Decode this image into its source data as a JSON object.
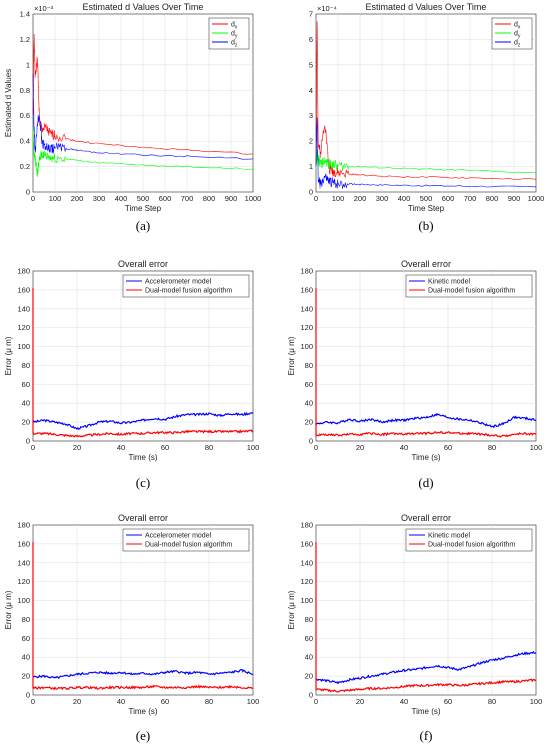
{
  "chart_data": [
    {
      "id": "a",
      "type": "line",
      "caption": "(a)",
      "title": "Estimated d Values Over Time",
      "xlabel": "Time Step",
      "ylabel": "Estimated d Values",
      "exponent_label": "×10⁻³",
      "xlim": [
        0,
        1000
      ],
      "ylim": [
        0,
        1.4
      ],
      "xticks": [
        "0",
        "100",
        "200",
        "300",
        "400",
        "500",
        "600",
        "700",
        "800",
        "900",
        "1000"
      ],
      "yticks": [
        "0",
        "0.2",
        "0.4",
        "0.6",
        "0.8",
        "1",
        "1.2",
        "1.4"
      ],
      "grid": true,
      "legend_position": "top-right",
      "series": [
        {
          "name": "d_x",
          "color": "#ff0000",
          "x": [
            0,
            5,
            10,
            20,
            30,
            40,
            60,
            80,
            100,
            150,
            200,
            300,
            500,
            700,
            1000
          ],
          "y": [
            0.6,
            1.25,
            0.9,
            1.05,
            0.55,
            0.5,
            0.5,
            0.45,
            0.45,
            0.42,
            0.4,
            0.38,
            0.35,
            0.33,
            0.3
          ]
        },
        {
          "name": "d_y",
          "color": "#00ff00",
          "x": [
            0,
            5,
            10,
            20,
            30,
            40,
            60,
            80,
            100,
            150,
            200,
            300,
            500,
            700,
            1000
          ],
          "y": [
            0.5,
            0.3,
            0.25,
            0.15,
            0.25,
            0.3,
            0.28,
            0.27,
            0.27,
            0.26,
            0.25,
            0.23,
            0.21,
            0.2,
            0.18
          ]
        },
        {
          "name": "d_z",
          "color": "#0000ff",
          "x": [
            0,
            5,
            10,
            20,
            30,
            40,
            60,
            80,
            100,
            150,
            200,
            300,
            500,
            700,
            1000
          ],
          "y": [
            0.9,
            0.5,
            0.3,
            0.55,
            0.6,
            0.4,
            0.35,
            0.33,
            0.35,
            0.34,
            0.33,
            0.31,
            0.29,
            0.28,
            0.26
          ]
        }
      ]
    },
    {
      "id": "b",
      "type": "line",
      "caption": "(b)",
      "title": "Estimated d Values Over Time",
      "xlabel": "Time Step",
      "ylabel": "",
      "exponent_label": "×10⁻⁴",
      "xlim": [
        0,
        1000
      ],
      "ylim": [
        0,
        7
      ],
      "xticks": [
        "0",
        "100",
        "200",
        "300",
        "400",
        "500",
        "600",
        "700",
        "800",
        "900",
        "1000"
      ],
      "yticks": [
        "0",
        "1",
        "2",
        "3",
        "4",
        "5",
        "6",
        "7"
      ],
      "grid": true,
      "legend_position": "top-right",
      "series": [
        {
          "name": "d_x",
          "color": "#ff0000",
          "x": [
            0,
            5,
            10,
            20,
            40,
            60,
            80,
            100,
            150,
            200,
            300,
            500,
            700,
            1000
          ],
          "y": [
            1,
            6.7,
            2,
            1.5,
            2.8,
            0.9,
            0.8,
            0.75,
            0.7,
            0.68,
            0.62,
            0.58,
            0.55,
            0.5
          ]
        },
        {
          "name": "d_y",
          "color": "#00ff00",
          "x": [
            0,
            5,
            10,
            20,
            40,
            60,
            80,
            100,
            150,
            200,
            300,
            500,
            700,
            1000
          ],
          "y": [
            1,
            1.5,
            1.3,
            1.1,
            1.2,
            1.1,
            1.1,
            1.0,
            1.0,
            1.0,
            0.95,
            0.9,
            0.85,
            0.75
          ]
        },
        {
          "name": "d_z",
          "color": "#0000ff",
          "x": [
            0,
            5,
            10,
            20,
            40,
            60,
            80,
            100,
            150,
            200,
            300,
            500,
            700,
            1000
          ],
          "y": [
            1,
            3,
            0.5,
            0.3,
            0.6,
            0.4,
            0.35,
            0.35,
            0.32,
            0.3,
            0.28,
            0.25,
            0.23,
            0.2
          ]
        }
      ]
    },
    {
      "id": "c",
      "type": "line",
      "caption": "(c)",
      "title": "Overall error",
      "xlabel": "Time (s)",
      "ylabel": "Error (μ m)",
      "xlim": [
        0,
        100
      ],
      "ylim": [
        0,
        180
      ],
      "xticks": [
        "0",
        "20",
        "40",
        "60",
        "80",
        "100"
      ],
      "yticks": [
        "0",
        "20",
        "40",
        "60",
        "80",
        "100",
        "120",
        "140",
        "160",
        "180"
      ],
      "grid": true,
      "legend_position": "top-right",
      "series": [
        {
          "name": "Accelerometer model",
          "color": "#0000ff",
          "x": [
            0,
            5,
            10,
            15,
            20,
            25,
            30,
            35,
            40,
            45,
            50,
            55,
            60,
            65,
            70,
            75,
            80,
            85,
            90,
            95,
            100
          ],
          "y": [
            20,
            22,
            20,
            18,
            13,
            16,
            20,
            21,
            19,
            20,
            22,
            24,
            23,
            26,
            28,
            28,
            29,
            27,
            29,
            28,
            30
          ]
        },
        {
          "name": "Dual-model fusion algorithm",
          "color": "#ff0000",
          "x": [
            0,
            5,
            10,
            15,
            20,
            25,
            30,
            35,
            40,
            45,
            50,
            55,
            60,
            65,
            70,
            75,
            80,
            85,
            90,
            95,
            100
          ],
          "y": [
            8,
            8,
            7,
            6,
            5,
            6,
            7,
            8,
            7,
            8,
            8,
            9,
            9,
            9,
            10,
            10,
            10,
            10,
            10,
            10,
            11
          ]
        }
      ]
    },
    {
      "id": "d",
      "type": "line",
      "caption": "(d)",
      "title": "Overall error",
      "xlabel": "Time (s)",
      "ylabel": "Error (μ m)",
      "xlim": [
        0,
        100
      ],
      "ylim": [
        0,
        180
      ],
      "xticks": [
        "0",
        "20",
        "40",
        "60",
        "80",
        "100"
      ],
      "yticks": [
        "0",
        "20",
        "40",
        "60",
        "80",
        "100",
        "120",
        "140",
        "160",
        "180"
      ],
      "grid": true,
      "legend_position": "top-right",
      "series": [
        {
          "name": "Kinetic model",
          "color": "#0000ff",
          "x": [
            0,
            5,
            10,
            15,
            20,
            25,
            30,
            35,
            40,
            45,
            50,
            55,
            60,
            65,
            70,
            75,
            80,
            85,
            90,
            95,
            100
          ],
          "y": [
            18,
            20,
            19,
            23,
            21,
            23,
            20,
            22,
            22,
            24,
            25,
            28,
            25,
            23,
            22,
            19,
            15,
            18,
            25,
            24,
            22
          ]
        },
        {
          "name": "Dual-model fusion algorithm",
          "color": "#ff0000",
          "x": [
            0,
            5,
            10,
            15,
            20,
            25,
            30,
            35,
            40,
            45,
            50,
            55,
            60,
            65,
            70,
            75,
            80,
            85,
            90,
            95,
            100
          ],
          "y": [
            6,
            7,
            6,
            7,
            7,
            8,
            7,
            8,
            7,
            8,
            8,
            9,
            9,
            8,
            8,
            7,
            6,
            5,
            7,
            8,
            7
          ]
        }
      ]
    },
    {
      "id": "e",
      "type": "line",
      "caption": "(e)",
      "title": "Overall error",
      "xlabel": "Time (s)",
      "ylabel": "Error (μ m)",
      "xlim": [
        0,
        100
      ],
      "ylim": [
        0,
        180
      ],
      "xticks": [
        "0",
        "20",
        "40",
        "60",
        "80",
        "100"
      ],
      "yticks": [
        "0",
        "20",
        "40",
        "60",
        "80",
        "100",
        "120",
        "140",
        "160",
        "180"
      ],
      "grid": true,
      "legend_position": "top-right",
      "series": [
        {
          "name": "Accelerometer model",
          "color": "#0000ff",
          "x": [
            0,
            5,
            10,
            15,
            20,
            25,
            30,
            35,
            40,
            45,
            50,
            55,
            60,
            65,
            70,
            75,
            80,
            85,
            90,
            95,
            100
          ],
          "y": [
            19,
            20,
            18,
            20,
            22,
            23,
            24,
            23,
            24,
            22,
            23,
            22,
            24,
            25,
            23,
            24,
            22,
            23,
            24,
            26,
            22
          ]
        },
        {
          "name": "Dual-model fusion algorithm",
          "color": "#ff0000",
          "x": [
            0,
            5,
            10,
            15,
            20,
            25,
            30,
            35,
            40,
            45,
            50,
            55,
            60,
            65,
            70,
            75,
            80,
            85,
            90,
            95,
            100
          ],
          "y": [
            7,
            8,
            7,
            7,
            8,
            8,
            7,
            8,
            8,
            8,
            8,
            9,
            8,
            8,
            8,
            9,
            8,
            8,
            9,
            8,
            7
          ]
        }
      ]
    },
    {
      "id": "f",
      "type": "line",
      "caption": "(f)",
      "title": "Overall error",
      "xlabel": "Time (s)",
      "ylabel": "Error (μ m)",
      "xlim": [
        0,
        100
      ],
      "ylim": [
        0,
        180
      ],
      "xticks": [
        "0",
        "20",
        "40",
        "60",
        "80",
        "100"
      ],
      "yticks": [
        "0",
        "20",
        "40",
        "60",
        "80",
        "100",
        "120",
        "140",
        "160",
        "180"
      ],
      "grid": true,
      "legend_position": "top-right",
      "series": [
        {
          "name": "Kinetic model",
          "color": "#0000ff",
          "x": [
            0,
            5,
            10,
            15,
            20,
            25,
            30,
            35,
            40,
            45,
            50,
            55,
            60,
            65,
            70,
            75,
            80,
            85,
            90,
            95,
            100
          ],
          "y": [
            17,
            15,
            13,
            16,
            18,
            20,
            22,
            24,
            26,
            27,
            29,
            31,
            29,
            27,
            30,
            34,
            37,
            39,
            42,
            44,
            45
          ]
        },
        {
          "name": "Dual-model fusion algorithm",
          "color": "#ff0000",
          "x": [
            0,
            5,
            10,
            15,
            20,
            25,
            30,
            35,
            40,
            45,
            50,
            55,
            60,
            65,
            70,
            75,
            80,
            85,
            90,
            95,
            100
          ],
          "y": [
            6,
            5,
            4,
            5,
            6,
            7,
            7,
            8,
            9,
            10,
            10,
            11,
            11,
            10,
            11,
            12,
            13,
            14,
            14,
            15,
            16
          ]
        }
      ]
    }
  ]
}
